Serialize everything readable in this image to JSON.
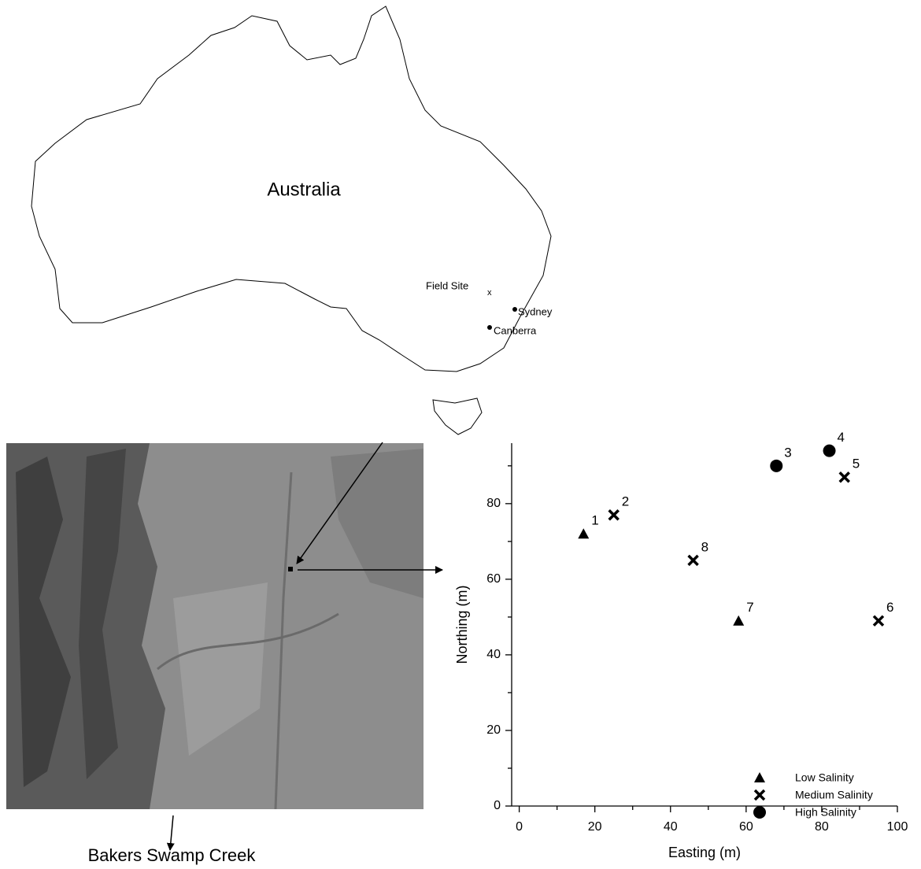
{
  "map": {
    "title": "Australia",
    "field_site": "Field Site",
    "field_site_marker": "x",
    "cities": [
      "Sydney",
      "Canberra"
    ]
  },
  "photo": {
    "caption": "Bakers Swamp Creek"
  },
  "chart_data": {
    "type": "scatter",
    "xlabel": "Easting (m)",
    "ylabel": "Northing (m)",
    "xlim": [
      -2,
      100
    ],
    "ylim": [
      0,
      96
    ],
    "xticks": [
      0,
      20,
      40,
      60,
      80,
      100
    ],
    "yticks": [
      0,
      20,
      40,
      60,
      80
    ],
    "xminorticks": [
      10,
      30,
      50,
      70,
      90
    ],
    "yminorticks": [
      10,
      30,
      50,
      70,
      90
    ],
    "legend": "lower right",
    "series": [
      {
        "name": "Low Salinity",
        "marker": "triangle",
        "color": "#000000",
        "x": [
          17,
          58
        ],
        "values": [
          72,
          49
        ],
        "labels": [
          "1",
          "7"
        ]
      },
      {
        "name": "Medium Salinity",
        "marker": "x",
        "color": "#000000",
        "x": [
          25,
          86,
          95,
          46
        ],
        "values": [
          77,
          87,
          49,
          65
        ],
        "labels": [
          "2",
          "5",
          "6",
          "8"
        ]
      },
      {
        "name": "High Salinity",
        "marker": "circle",
        "color": "#000000",
        "x": [
          68,
          82
        ],
        "values": [
          90,
          94
        ],
        "labels": [
          "3",
          "4"
        ]
      }
    ]
  }
}
